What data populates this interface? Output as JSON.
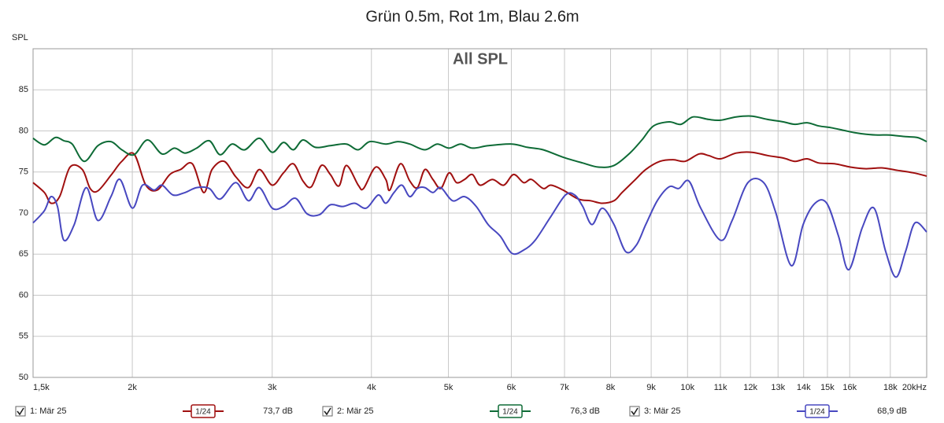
{
  "chart_data": {
    "type": "line",
    "title": "Grün 0.5m, Rot 1m, Blau 2.6m",
    "plot_title": "All SPL",
    "y_label": "SPL",
    "xscale": "log",
    "grid": true,
    "xlim": [
      1500,
      20000
    ],
    "ylim": [
      50,
      90
    ],
    "xticks": [
      {
        "value": 1500,
        "label": "1,5k"
      },
      {
        "value": 2000,
        "label": "2k"
      },
      {
        "value": 3000,
        "label": "3k"
      },
      {
        "value": 4000,
        "label": "4k"
      },
      {
        "value": 5000,
        "label": "5k"
      },
      {
        "value": 6000,
        "label": "6k"
      },
      {
        "value": 7000,
        "label": "7k"
      },
      {
        "value": 8000,
        "label": "8k"
      },
      {
        "value": 9000,
        "label": "9k"
      },
      {
        "value": 10000,
        "label": "10k"
      },
      {
        "value": 11000,
        "label": "11k"
      },
      {
        "value": 12000,
        "label": "12k"
      },
      {
        "value": 13000,
        "label": "13k"
      },
      {
        "value": 14000,
        "label": "14k"
      },
      {
        "value": 15000,
        "label": "15k"
      },
      {
        "value": 16000,
        "label": "16k"
      },
      {
        "value": 18000,
        "label": "18k"
      },
      {
        "value": 20000,
        "label": "20kHz"
      }
    ],
    "yticks": [
      50,
      55,
      60,
      65,
      70,
      75,
      80,
      85
    ],
    "series": [
      {
        "name": "1: Mär 25",
        "color": "#a01010",
        "checked": true,
        "smoothing": "1/24",
        "readout": "73,7 dB",
        "x": [
          1500,
          1550,
          1580,
          1620,
          1670,
          1730,
          1770,
          1810,
          1880,
          1940,
          2010,
          2080,
          2150,
          2230,
          2300,
          2380,
          2460,
          2520,
          2610,
          2700,
          2800,
          2890,
          3000,
          3100,
          3190,
          3280,
          3360,
          3460,
          3550,
          3640,
          3720,
          3850,
          3910,
          4050,
          4170,
          4220,
          4350,
          4470,
          4570,
          4670,
          4780,
          4890,
          5010,
          5120,
          5240,
          5360,
          5480,
          5680,
          5870,
          6040,
          6220,
          6360,
          6580,
          6730,
          6970,
          7290,
          7550,
          7810,
          8080,
          8270,
          8560,
          8860,
          9230,
          9590,
          9930,
          10340,
          10630,
          11000,
          11510,
          12050,
          12610,
          13200,
          13660,
          14140,
          14630,
          15310,
          16030,
          16780,
          17560,
          18380,
          19240,
          20000
        ],
        "values": [
          73.7,
          72.5,
          71.2,
          72.0,
          75.6,
          75.3,
          73.0,
          72.7,
          74.6,
          76.3,
          77.2,
          73.4,
          72.8,
          74.7,
          75.3,
          76.0,
          72.5,
          75.3,
          76.3,
          74.4,
          73.1,
          75.3,
          73.4,
          74.9,
          76.0,
          73.9,
          73.2,
          75.8,
          74.7,
          73.3,
          75.8,
          73.4,
          73.0,
          75.6,
          74.1,
          72.8,
          76.0,
          73.9,
          73.1,
          75.3,
          74.1,
          73.0,
          74.9,
          73.7,
          74.1,
          74.7,
          73.4,
          74.1,
          73.4,
          74.7,
          73.7,
          74.1,
          73.0,
          73.4,
          72.8,
          71.7,
          71.5,
          71.2,
          71.5,
          72.5,
          73.9,
          75.3,
          76.3,
          76.5,
          76.3,
          77.2,
          77.0,
          76.6,
          77.3,
          77.4,
          77.0,
          76.7,
          76.3,
          76.6,
          76.1,
          76.0,
          75.6,
          75.4,
          75.5,
          75.2,
          74.9,
          74.5
        ]
      },
      {
        "name": "2: Mär 25",
        "color": "#0e6b36",
        "checked": true,
        "smoothing": "1/24",
        "readout": "76,3 dB",
        "x": [
          1500,
          1550,
          1600,
          1640,
          1680,
          1740,
          1810,
          1880,
          1940,
          2010,
          2090,
          2180,
          2260,
          2330,
          2410,
          2500,
          2580,
          2670,
          2770,
          2890,
          3000,
          3100,
          3190,
          3280,
          3400,
          3550,
          3720,
          3850,
          3980,
          4170,
          4320,
          4470,
          4670,
          4840,
          5010,
          5180,
          5360,
          5610,
          6010,
          6290,
          6580,
          6970,
          7380,
          7720,
          8080,
          8460,
          8760,
          9060,
          9480,
          9810,
          10160,
          10630,
          11000,
          11510,
          12050,
          12610,
          13200,
          13660,
          14140,
          14630,
          15140,
          15670,
          16210,
          16780,
          17360,
          17970,
          18810,
          19460,
          20000
        ],
        "values": [
          79.1,
          78.3,
          79.2,
          78.8,
          78.4,
          76.3,
          78.2,
          78.7,
          77.7,
          77.1,
          78.9,
          77.2,
          77.9,
          77.3,
          77.9,
          78.8,
          77.1,
          78.4,
          77.7,
          79.1,
          77.4,
          78.6,
          77.7,
          78.9,
          78.0,
          78.2,
          78.4,
          77.7,
          78.7,
          78.4,
          78.7,
          78.4,
          77.7,
          78.4,
          77.9,
          78.4,
          77.9,
          78.2,
          78.4,
          78.0,
          77.7,
          76.8,
          76.1,
          75.6,
          75.8,
          77.3,
          78.9,
          80.6,
          81.1,
          80.8,
          81.7,
          81.4,
          81.3,
          81.7,
          81.8,
          81.4,
          81.1,
          80.8,
          81.0,
          80.6,
          80.4,
          80.1,
          79.8,
          79.6,
          79.5,
          79.5,
          79.3,
          79.2,
          78.7
        ]
      },
      {
        "name": "3: Mär 25",
        "color": "#4848c0",
        "checked": true,
        "smoothing": "1/24",
        "readout": "68,9 dB",
        "x": [
          1500,
          1550,
          1580,
          1610,
          1640,
          1690,
          1750,
          1810,
          1880,
          1930,
          2000,
          2060,
          2130,
          2180,
          2250,
          2330,
          2410,
          2500,
          2580,
          2700,
          2800,
          2890,
          3000,
          3100,
          3210,
          3320,
          3440,
          3550,
          3680,
          3810,
          3940,
          4080,
          4170,
          4270,
          4370,
          4470,
          4570,
          4670,
          4780,
          4890,
          5060,
          5240,
          5420,
          5610,
          5810,
          6010,
          6220,
          6430,
          6730,
          7020,
          7210,
          7380,
          7580,
          7810,
          8080,
          8360,
          8620,
          8860,
          9160,
          9480,
          9750,
          10040,
          10390,
          11000,
          11380,
          11910,
          12470,
          12910,
          13510,
          13980,
          14470,
          14970,
          15490,
          15960,
          16590,
          17170,
          17760,
          18300,
          18810,
          19330,
          20000
        ],
        "values": [
          68.8,
          70.3,
          72.0,
          70.8,
          66.7,
          68.6,
          73.1,
          69.1,
          72.0,
          74.1,
          70.6,
          73.4,
          72.8,
          73.4,
          72.2,
          72.5,
          73.1,
          73.0,
          71.7,
          73.7,
          71.5,
          73.1,
          70.6,
          70.8,
          71.8,
          69.9,
          69.8,
          71.0,
          70.8,
          71.2,
          70.6,
          72.2,
          71.2,
          72.5,
          73.4,
          72.0,
          73.0,
          73.1,
          72.5,
          73.1,
          71.5,
          72.0,
          70.8,
          68.6,
          67.2,
          65.1,
          65.5,
          66.7,
          69.6,
          72.2,
          72.2,
          70.8,
          68.6,
          70.6,
          68.6,
          65.3,
          66.1,
          68.6,
          71.5,
          73.2,
          73.0,
          73.9,
          70.6,
          66.7,
          69.1,
          73.7,
          73.7,
          70.1,
          63.6,
          68.6,
          71.2,
          71.2,
          67.2,
          63.1,
          68.2,
          70.6,
          65.3,
          62.2,
          65.3,
          68.8,
          67.7
        ]
      }
    ]
  }
}
